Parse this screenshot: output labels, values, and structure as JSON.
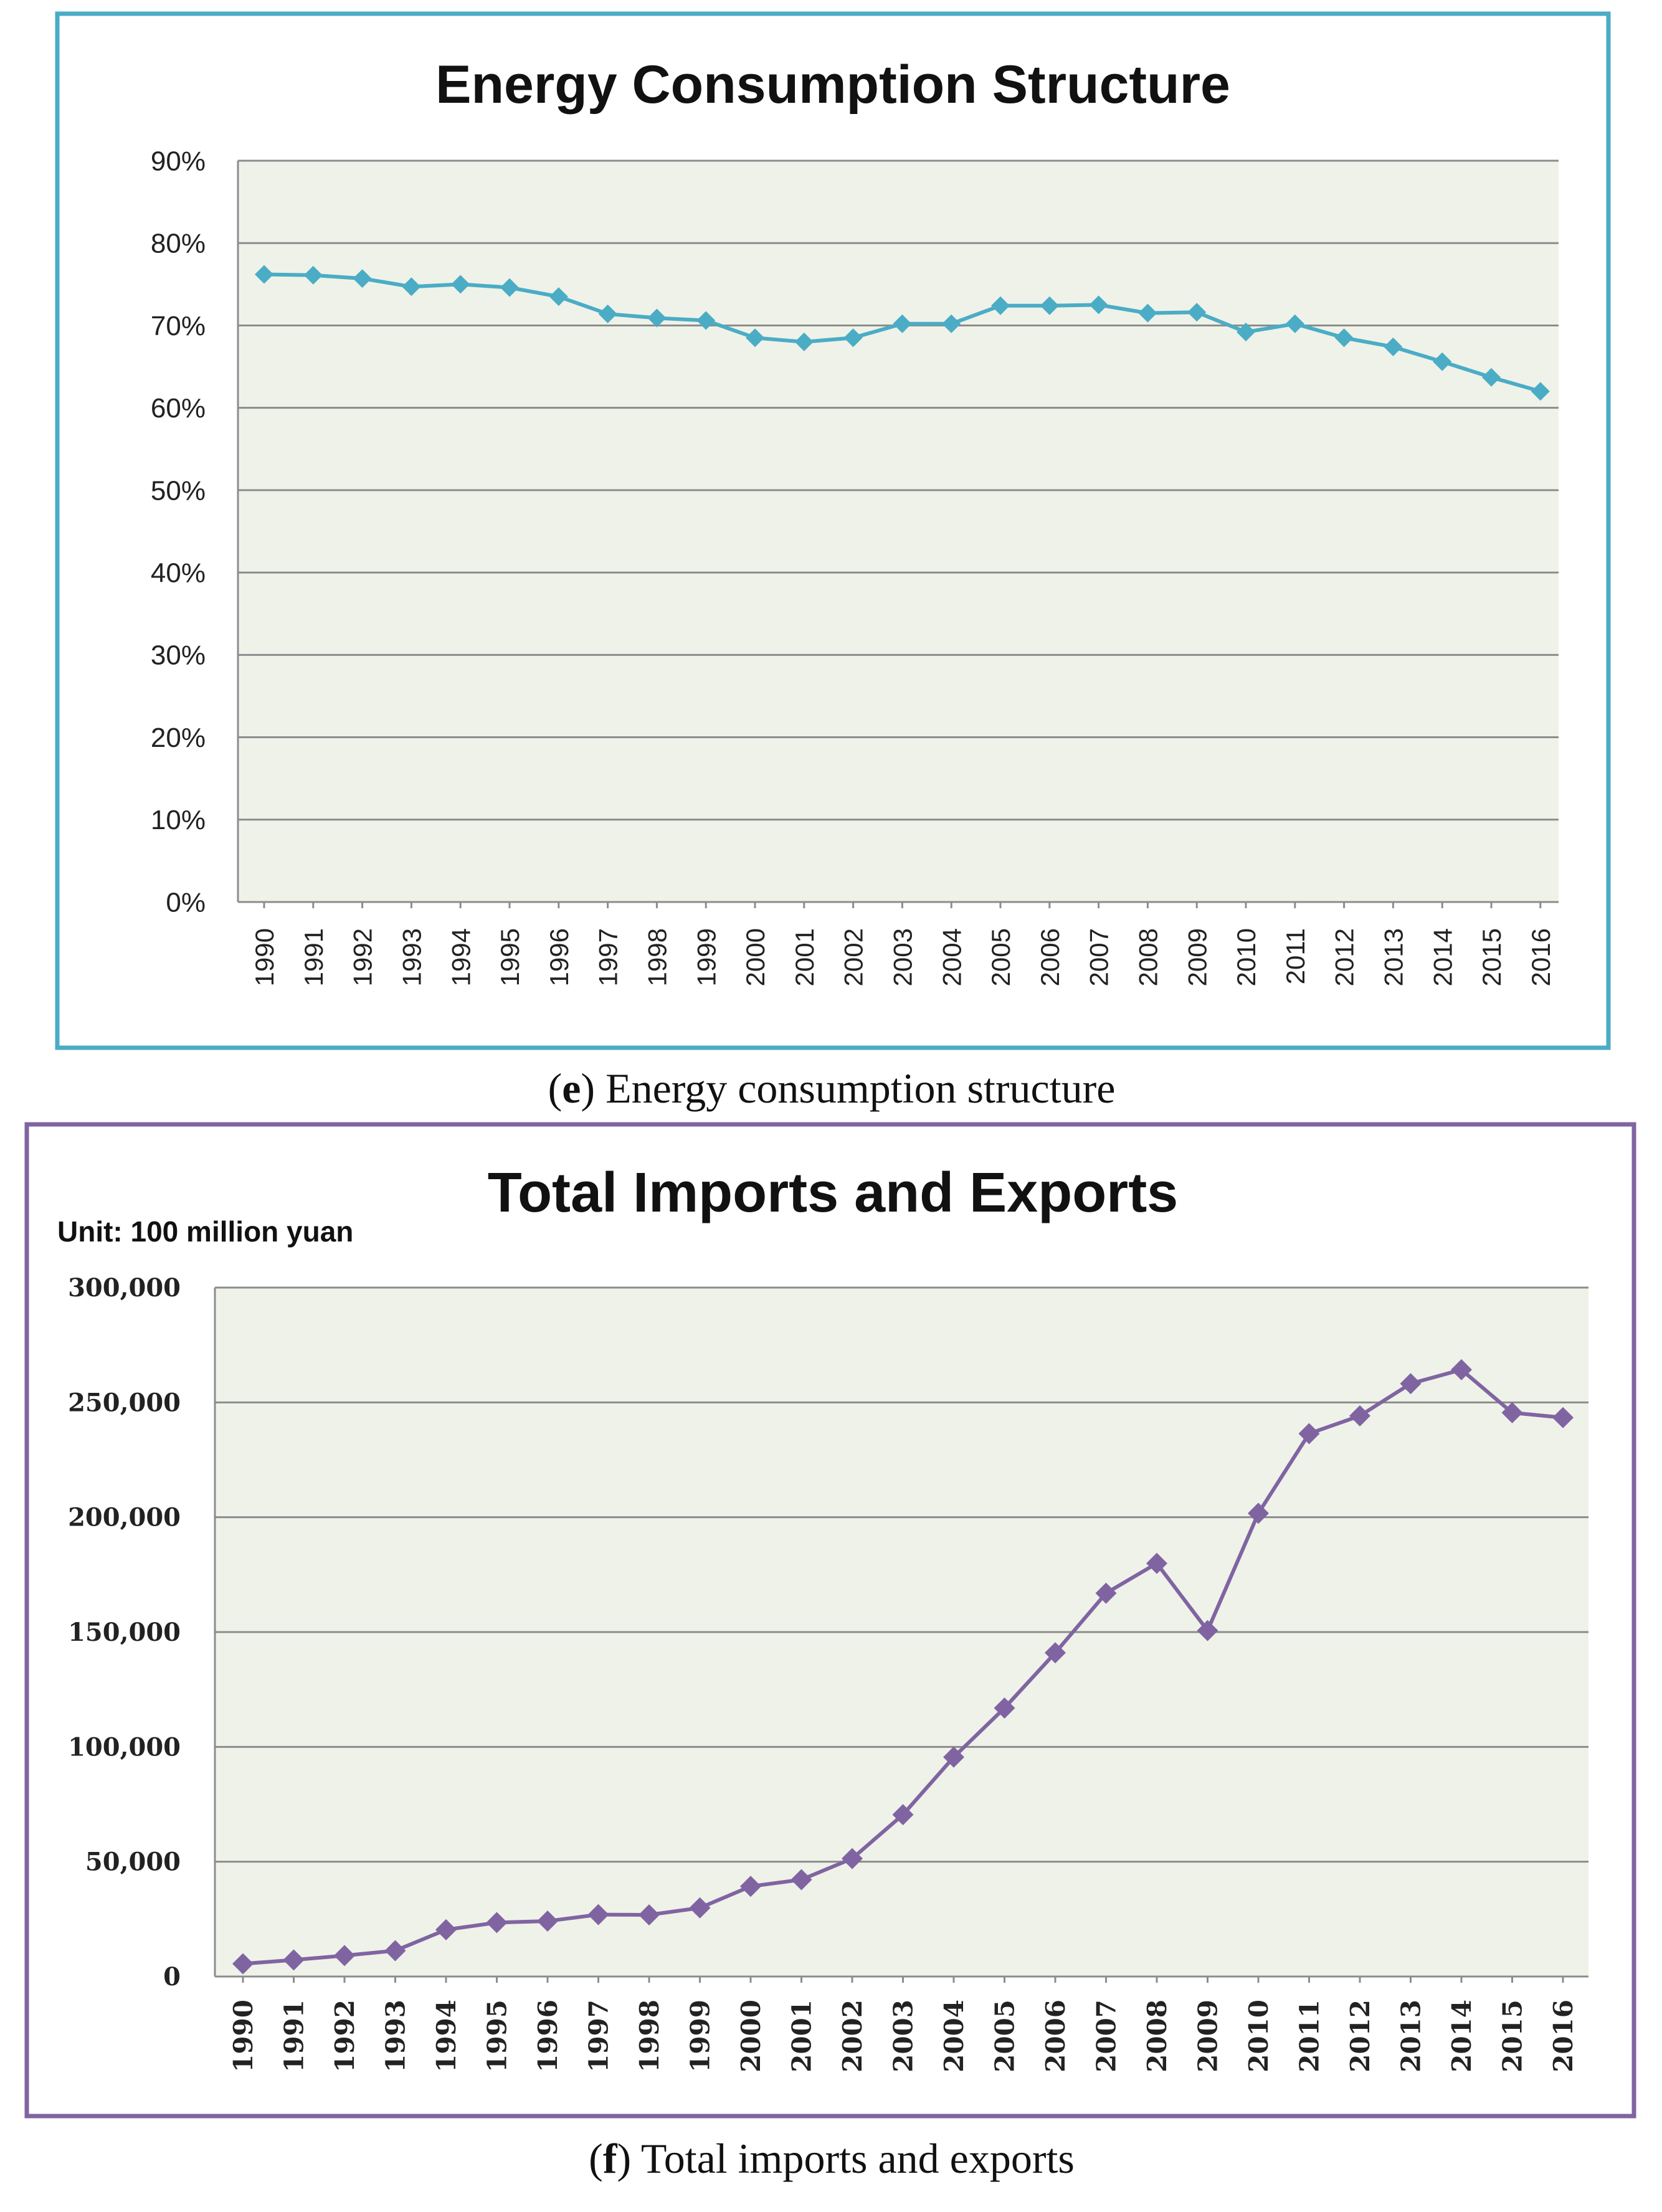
{
  "chart_data": [
    {
      "type": "line",
      "title": "Energy Consumption Structure",
      "caption_letter": "e",
      "caption_text": " Energy consumption structure",
      "xlabel": "",
      "ylabel": "",
      "ylim": [
        0,
        90
      ],
      "y_ticks": [
        0,
        10,
        20,
        30,
        40,
        50,
        60,
        70,
        80,
        90
      ],
      "y_tick_labels": [
        "0%",
        "10%",
        "20%",
        "30%",
        "40%",
        "50%",
        "60%",
        "70%",
        "80%",
        "90%"
      ],
      "grid": true,
      "colors": {
        "line": "#4bacc6",
        "frame": "#4bacc6",
        "plot_bg": "#eff2e8",
        "grid": "#8c8c8c"
      },
      "categories": [
        "1990",
        "1991",
        "1992",
        "1993",
        "1994",
        "1995",
        "1996",
        "1997",
        "1998",
        "1999",
        "2000",
        "2001",
        "2002",
        "2003",
        "2004",
        "2005",
        "2006",
        "2007",
        "2008",
        "2009",
        "2010",
        "2011",
        "2012",
        "2013",
        "2014",
        "2015",
        "2016"
      ],
      "series": [
        {
          "name": "Energy consumption structure",
          "values": [
            76.2,
            76.1,
            75.7,
            74.7,
            75.0,
            74.6,
            73.5,
            71.4,
            70.9,
            70.6,
            68.5,
            68.0,
            68.5,
            70.2,
            70.2,
            72.4,
            72.4,
            72.5,
            71.5,
            71.6,
            69.2,
            70.2,
            68.5,
            67.4,
            65.6,
            63.7,
            62.0
          ]
        }
      ]
    },
    {
      "type": "line",
      "title": "Total Imports and Exports",
      "caption_letter": "f",
      "caption_text": " Total imports and exports",
      "unit_label": "Unit: 100 million yuan",
      "xlabel": "",
      "ylabel": "",
      "ylim": [
        0,
        300000
      ],
      "y_ticks": [
        0,
        50000,
        100000,
        150000,
        200000,
        250000,
        300000
      ],
      "y_tick_labels": [
        "0",
        "50,000",
        "100,000",
        "150,000",
        "200,000",
        "250,000",
        "300,000"
      ],
      "grid": true,
      "colors": {
        "line": "#8064a2",
        "frame": "#8064a2",
        "plot_bg": "#eff2e8",
        "grid": "#8c8c8c"
      },
      "categories": [
        "1990",
        "1991",
        "1992",
        "1993",
        "1994",
        "1995",
        "1996",
        "1997",
        "1998",
        "1999",
        "2000",
        "2001",
        "2002",
        "2003",
        "2004",
        "2005",
        "2006",
        "2007",
        "2008",
        "2009",
        "2010",
        "2011",
        "2012",
        "2013",
        "2014",
        "2015",
        "2016"
      ],
      "series": [
        {
          "name": "Total imports and exports",
          "values": [
            5560,
            7226,
            9120,
            11271,
            20382,
            23500,
            24134,
            26967,
            26850,
            29896,
            39273,
            42184,
            51378,
            70484,
            95539,
            116922,
            140975,
            166924,
            179921,
            150648,
            201722,
            236402,
            244160,
            258169,
            264242,
            245503,
            243386
          ]
        }
      ]
    }
  ]
}
